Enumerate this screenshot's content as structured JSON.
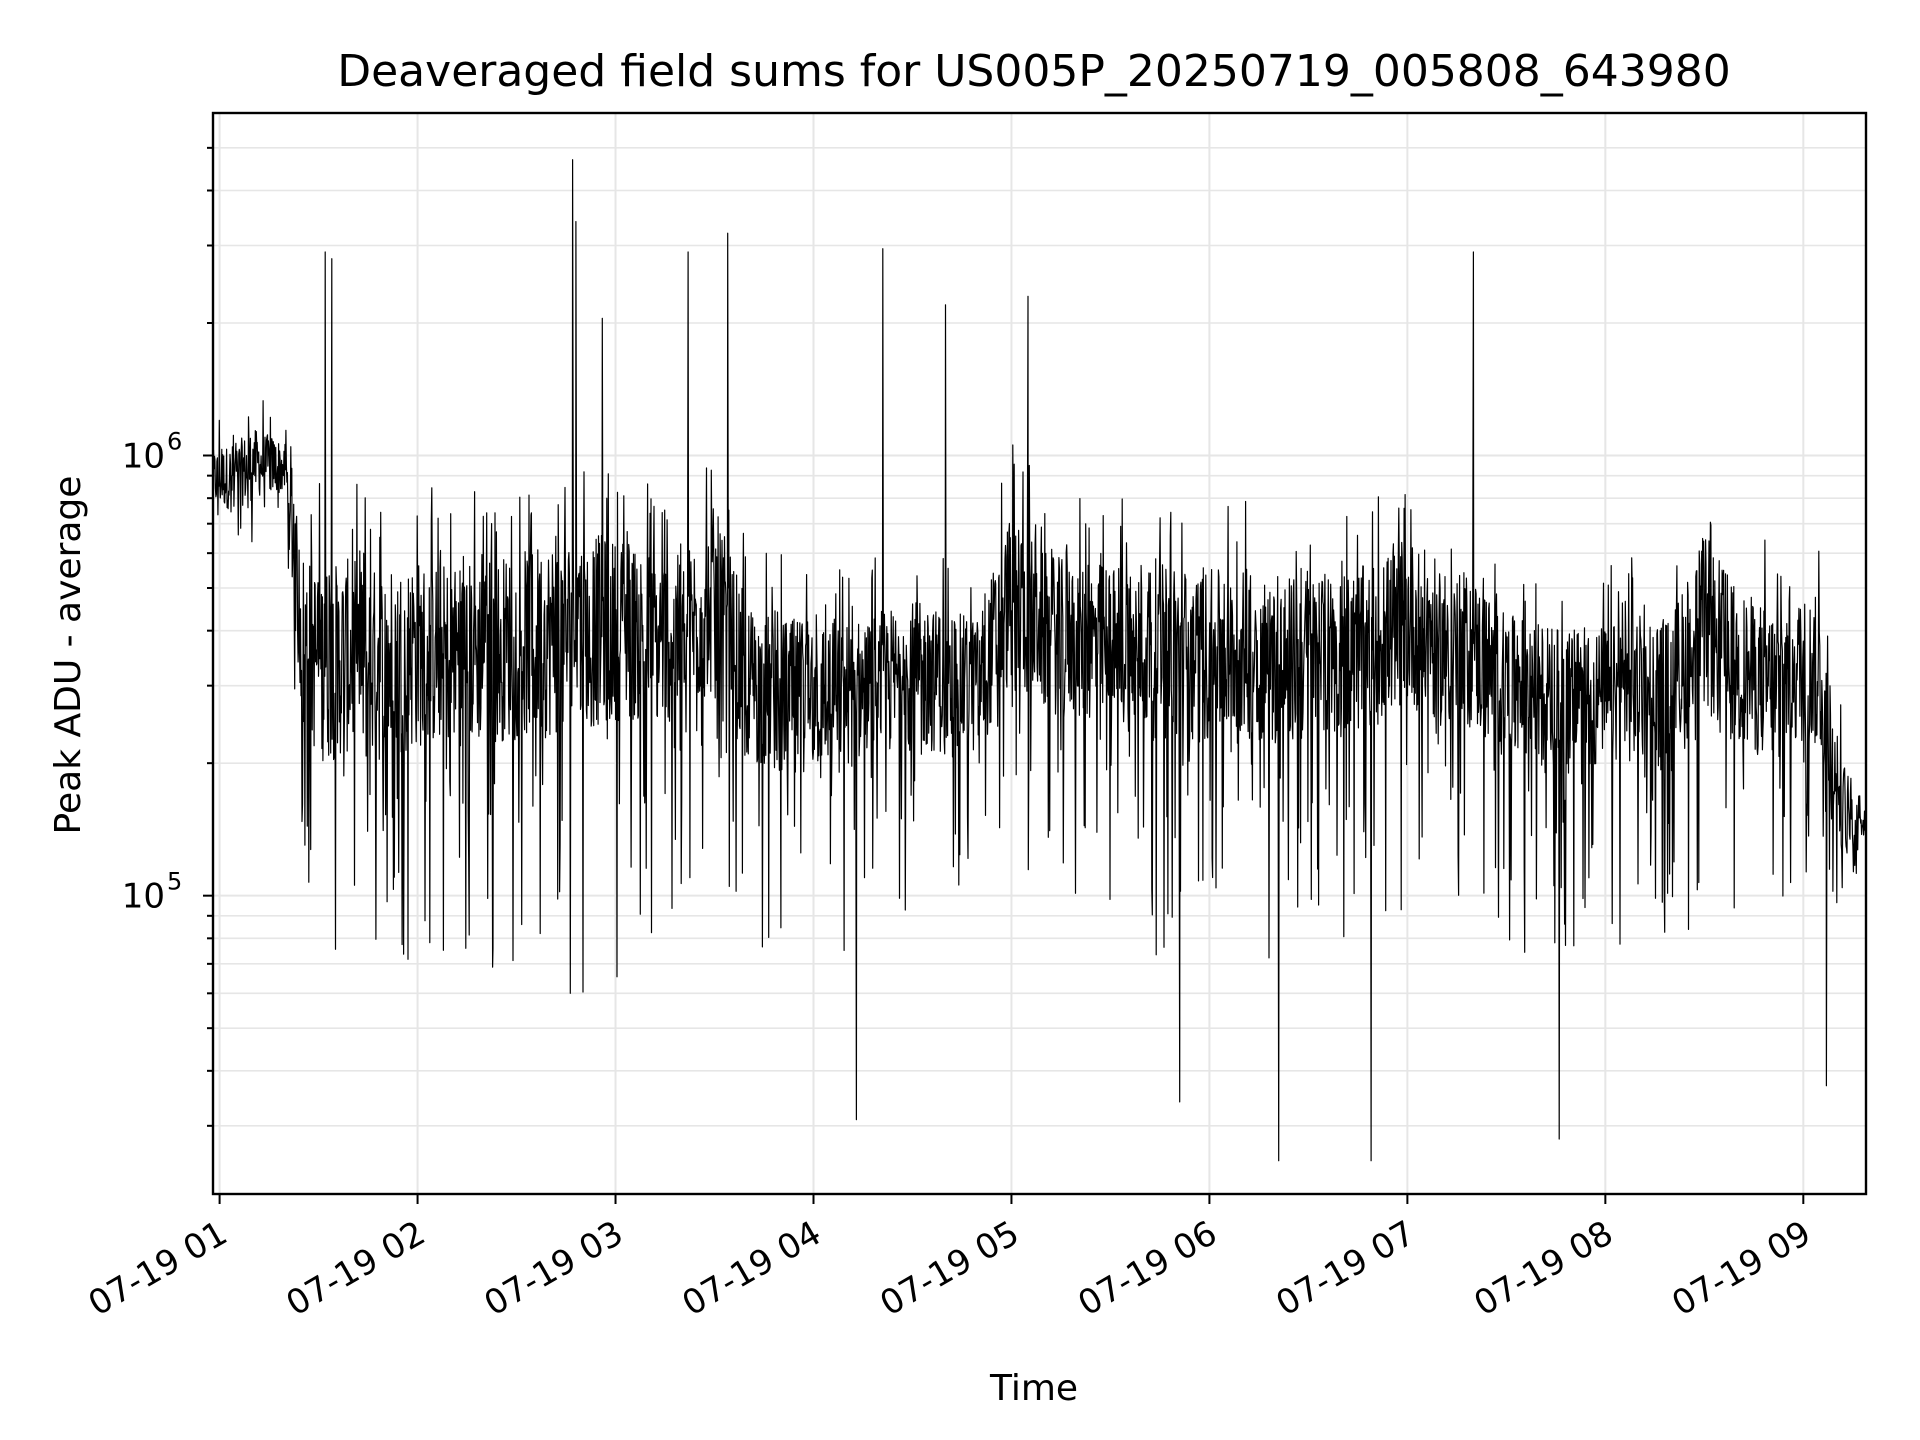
{
  "chart_data": {
    "type": "line",
    "title": "Deaveraged field sums for US005P_20250719_005808_643980",
    "xlabel": "Time",
    "ylabel": "Peak ADU - average",
    "yscale": "log",
    "grid": true,
    "legend": "none",
    "line_color": "#000000",
    "x_ticks": [
      "07-19 01",
      "07-19 02",
      "07-19 03",
      "07-19 04",
      "07-19 05",
      "07-19 06",
      "07-19 07",
      "07-19 08",
      "07-19 09"
    ],
    "y_ticks": [
      {
        "base": "10",
        "exp": "5",
        "value": 100000
      },
      {
        "base": "10",
        "exp": "6",
        "value": 1000000
      }
    ],
    "xlim": [
      "2025-07-19 00:58",
      "2025-07-19 09:19"
    ],
    "ylim": [
      21000,
      6000000
    ],
    "series": [
      {
        "x": [
          "2025-07-19 00:58",
          "2025-07-19 01:05",
          "2025-07-19 01:10",
          "2025-07-19 01:15",
          "2025-07-19 01:20",
          "2025-07-19 01:25",
          "2025-07-19 01:30",
          "2025-07-19 01:35",
          "2025-07-19 01:40",
          "2025-07-19 01:45",
          "2025-07-19 01:50",
          "2025-07-19 01:55",
          "2025-07-19 02:00",
          "2025-07-19 02:10",
          "2025-07-19 02:20",
          "2025-07-19 02:30",
          "2025-07-19 02:40",
          "2025-07-19 02:50",
          "2025-07-19 03:00",
          "2025-07-19 03:10",
          "2025-07-19 03:20",
          "2025-07-19 03:30",
          "2025-07-19 03:40",
          "2025-07-19 03:50",
          "2025-07-19 04:00",
          "2025-07-19 04:10",
          "2025-07-19 04:20",
          "2025-07-19 04:30",
          "2025-07-19 04:40",
          "2025-07-19 04:50",
          "2025-07-19 05:00",
          "2025-07-19 05:10",
          "2025-07-19 05:20",
          "2025-07-19 05:30",
          "2025-07-19 05:40",
          "2025-07-19 05:50",
          "2025-07-19 06:00",
          "2025-07-19 06:10",
          "2025-07-19 06:20",
          "2025-07-19 06:30",
          "2025-07-19 06:40",
          "2025-07-19 06:50",
          "2025-07-19 07:00",
          "2025-07-19 07:10",
          "2025-07-19 07:20",
          "2025-07-19 07:30",
          "2025-07-19 07:40",
          "2025-07-19 07:50",
          "2025-07-19 08:00",
          "2025-07-19 08:10",
          "2025-07-19 08:20",
          "2025-07-19 08:30",
          "2025-07-19 08:40",
          "2025-07-19 08:50",
          "2025-07-19 09:00",
          "2025-07-19 09:05",
          "2025-07-19 09:10",
          "2025-07-19 09:15",
          "2025-07-19 09:19"
        ],
        "y": [
          850000,
          880000,
          950000,
          920000,
          900000,
          350000,
          300000,
          320000,
          330000,
          300000,
          310000,
          320000,
          330000,
          340000,
          350000,
          360000,
          370000,
          380000,
          400000,
          390000,
          380000,
          420000,
          300000,
          280000,
          290000,
          310000,
          300000,
          320000,
          300000,
          290000,
          450000,
          400000,
          380000,
          370000,
          360000,
          340000,
          330000,
          350000,
          340000,
          330000,
          350000,
          370000,
          420000,
          380000,
          360000,
          300000,
          290000,
          280000,
          290000,
          300000,
          280000,
          400000,
          330000,
          300000,
          320000,
          300000,
          160000,
          150000,
          140000
        ],
        "low": [
          650000,
          600000,
          600000,
          700000,
          700000,
          120000,
          80000,
          60000,
          65000,
          60000,
          70000,
          65000,
          75000,
          70000,
          60000,
          65000,
          55000,
          60000,
          65000,
          70000,
          80000,
          130000,
          80000,
          70000,
          75000,
          60000,
          90000,
          85000,
          100000,
          110000,
          130000,
          90000,
          95000,
          85000,
          75000,
          70000,
          90000,
          80000,
          70000,
          90000,
          80000,
          85000,
          90000,
          75000,
          85000,
          80000,
          70000,
          65000,
          75000,
          80000,
          75000,
          90000,
          75000,
          80000,
          100000,
          110000,
          90000,
          85000,
          130000
        ],
        "high": [
          1250000,
          1300000,
          1400000,
          1350000,
          1300000,
          950000,
          900000,
          880000,
          900000,
          870000,
          880000,
          900000,
          900000,
          850000,
          880000,
          900000,
          1000000,
          1050000,
          950000,
          900000,
          850000,
          1200000,
          650000,
          600000,
          600000,
          550000,
          620000,
          650000,
          620000,
          600000,
          1150000,
          850000,
          800000,
          820000,
          880000,
          850000,
          820000,
          800000,
          750000,
          800000,
          780000,
          820000,
          950000,
          800000,
          750000,
          600000,
          580000,
          560000,
          560000,
          600000,
          620000,
          1000000,
          700000,
          650000,
          680000,
          700000,
          300000,
          220000,
          200000
        ],
        "spikes": [
          {
            "x": "2025-07-19 01:32",
            "y": 2900000
          },
          {
            "x": "2025-07-19 01:34",
            "y": 2800000
          },
          {
            "x": "2025-07-19 02:47",
            "y": 4700000
          },
          {
            "x": "2025-07-19 02:48",
            "y": 3400000
          },
          {
            "x": "2025-07-19 02:56",
            "y": 2050000
          },
          {
            "x": "2025-07-19 03:22",
            "y": 2900000
          },
          {
            "x": "2025-07-19 03:34",
            "y": 3200000
          },
          {
            "x": "2025-07-19 04:21",
            "y": 2950000
          },
          {
            "x": "2025-07-19 04:40",
            "y": 2200000
          },
          {
            "x": "2025-07-19 05:05",
            "y": 2300000
          },
          {
            "x": "2025-07-19 07:20",
            "y": 2900000
          },
          {
            "x": "2025-07-19 04:13",
            "y": 31000
          },
          {
            "x": "2025-07-19 05:51",
            "y": 34000
          },
          {
            "x": "2025-07-19 06:21",
            "y": 25000
          },
          {
            "x": "2025-07-19 06:49",
            "y": 25000
          },
          {
            "x": "2025-07-19 07:46",
            "y": 28000
          },
          {
            "x": "2025-07-19 09:07",
            "y": 37000
          }
        ]
      }
    ]
  }
}
